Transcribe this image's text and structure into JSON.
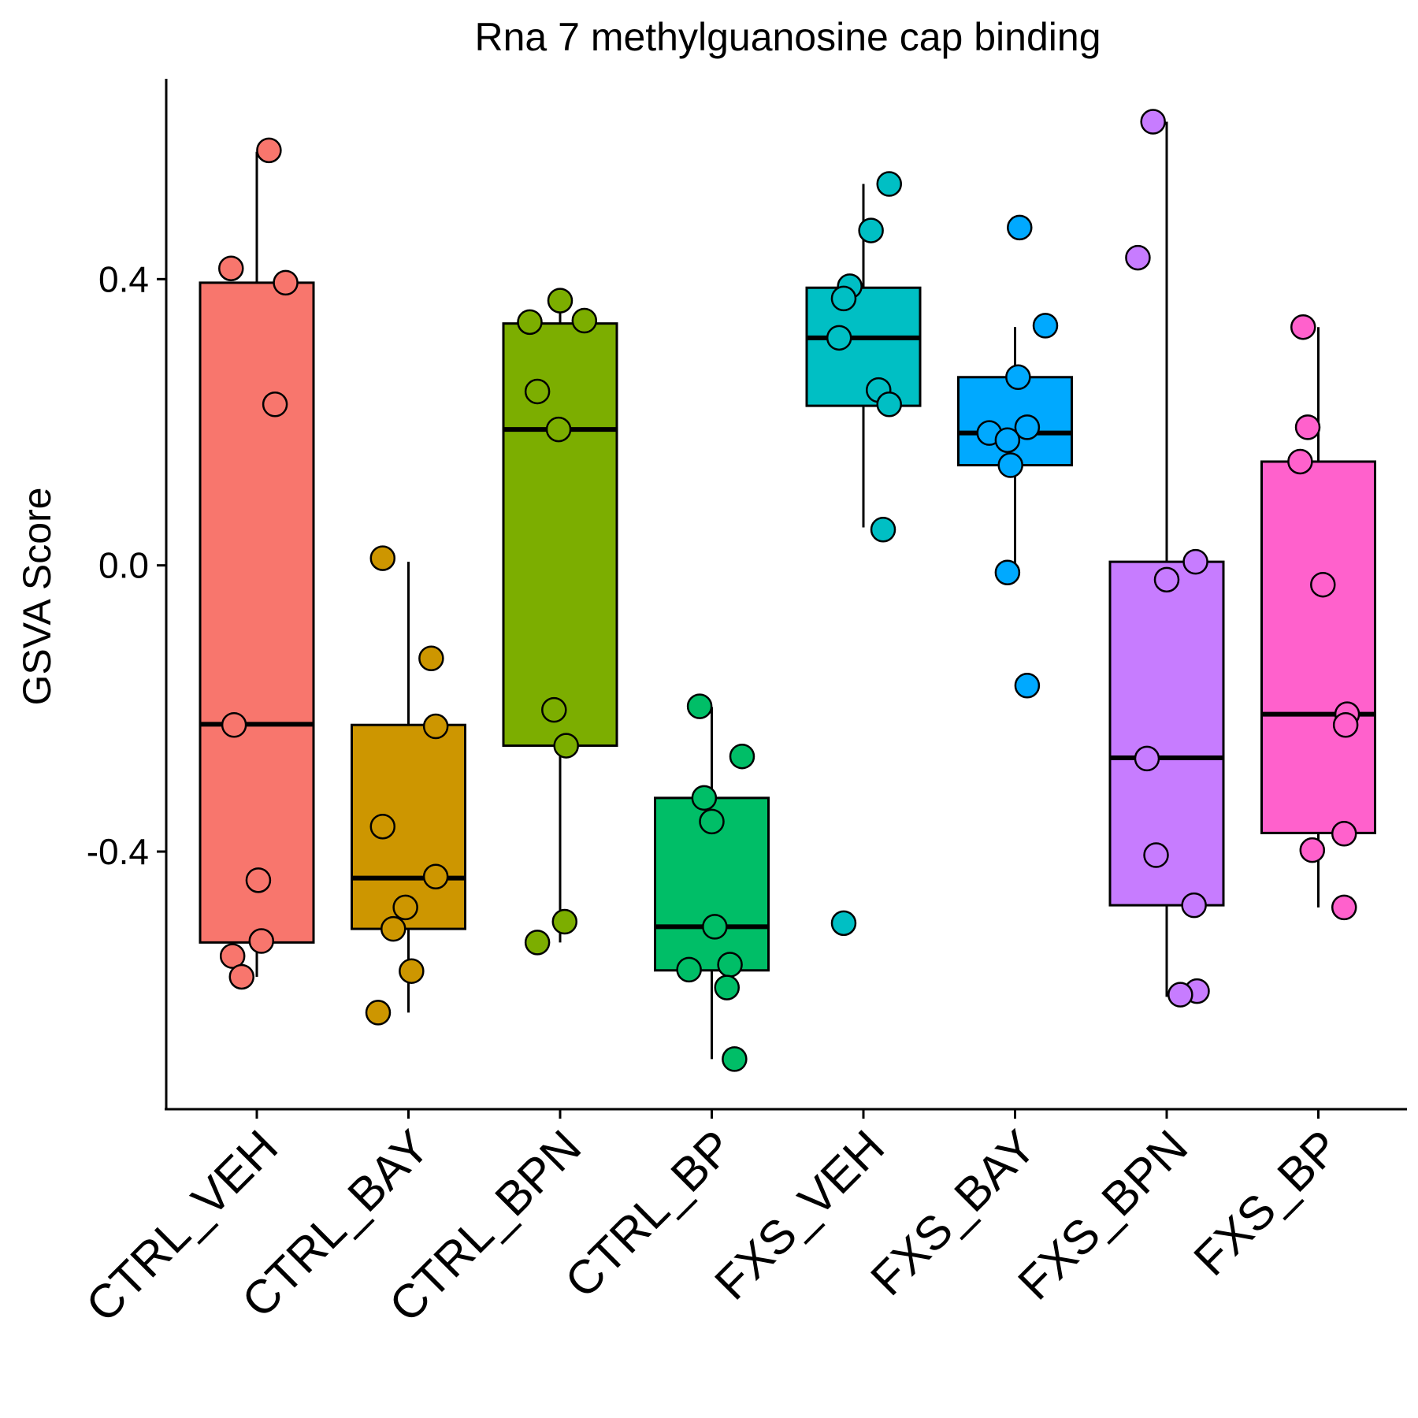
{
  "chart_data": {
    "type": "boxplot",
    "title": "Rna 7 methylguanosine cap binding",
    "xlabel": "",
    "ylabel": "GSVA Score",
    "ylim": [
      -0.76,
      0.68
    ],
    "yticks": [
      0.4,
      0.0,
      -0.4
    ],
    "ytick_labels": [
      "0.4",
      "0.0",
      "-0.4"
    ],
    "grid": false,
    "legend": "none",
    "categories": [
      "CTRL_VEH",
      "CTRL_BAY",
      "CTRL_BPN",
      "CTRL_BP",
      "FXS_VEH",
      "FXS_BAY",
      "FXS_BPN",
      "FXS_BP"
    ],
    "colors": [
      "#F8766D",
      "#CD9600",
      "#7CAE00",
      "#00BE67",
      "#00BFC4",
      "#00A9FF",
      "#C77CFF",
      "#FF61CC"
    ],
    "boxes": [
      {
        "whisker_low": -0.575,
        "q1": -0.527,
        "median": -0.222,
        "q3": 0.395,
        "whisker_high": 0.578
      },
      {
        "whisker_low": -0.625,
        "q1": -0.508,
        "median": -0.437,
        "q3": -0.223,
        "whisker_high": 0.005
      },
      {
        "whisker_low": -0.527,
        "q1": -0.252,
        "median": 0.19,
        "q3": 0.338,
        "whisker_high": 0.37
      },
      {
        "whisker_low": -0.69,
        "q1": -0.566,
        "median": -0.505,
        "q3": -0.325,
        "whisker_high": -0.198
      },
      {
        "whisker_low": 0.053,
        "q1": 0.223,
        "median": 0.318,
        "q3": 0.388,
        "whisker_high": 0.533
      },
      {
        "whisker_low": -0.008,
        "q1": 0.14,
        "median": 0.185,
        "q3": 0.263,
        "whisker_high": 0.333
      },
      {
        "whisker_low": -0.603,
        "q1": -0.475,
        "median": -0.269,
        "q3": 0.005,
        "whisker_high": 0.62
      },
      {
        "whisker_low": -0.478,
        "q1": -0.374,
        "median": -0.208,
        "q3": 0.145,
        "whisker_high": 0.333
      }
    ],
    "points": [
      [
        {
          "jitter": 0.08,
          "y": 0.58
        },
        {
          "jitter": -0.17,
          "y": 0.415
        },
        {
          "jitter": 0.19,
          "y": 0.395
        },
        {
          "jitter": 0.12,
          "y": 0.225
        },
        {
          "jitter": -0.15,
          "y": -0.223
        },
        {
          "jitter": 0.01,
          "y": -0.44
        },
        {
          "jitter": 0.03,
          "y": -0.525
        },
        {
          "jitter": -0.16,
          "y": -0.546
        },
        {
          "jitter": -0.1,
          "y": -0.575
        }
      ],
      [
        {
          "jitter": -0.17,
          "y": 0.01
        },
        {
          "jitter": 0.15,
          "y": -0.13
        },
        {
          "jitter": 0.18,
          "y": -0.225
        },
        {
          "jitter": -0.17,
          "y": -0.365
        },
        {
          "jitter": 0.18,
          "y": -0.435
        },
        {
          "jitter": -0.02,
          "y": -0.478
        },
        {
          "jitter": -0.1,
          "y": -0.508
        },
        {
          "jitter": 0.02,
          "y": -0.567
        },
        {
          "jitter": -0.2,
          "y": -0.625
        }
      ],
      [
        {
          "jitter": 0.0,
          "y": 0.37
        },
        {
          "jitter": -0.2,
          "y": 0.34
        },
        {
          "jitter": 0.16,
          "y": 0.342
        },
        {
          "jitter": -0.15,
          "y": 0.243
        },
        {
          "jitter": -0.01,
          "y": 0.19
        },
        {
          "jitter": -0.04,
          "y": -0.202
        },
        {
          "jitter": 0.04,
          "y": -0.252
        },
        {
          "jitter": 0.03,
          "y": -0.498
        },
        {
          "jitter": -0.15,
          "y": -0.527
        }
      ],
      [
        {
          "jitter": -0.08,
          "y": -0.197
        },
        {
          "jitter": 0.2,
          "y": -0.267
        },
        {
          "jitter": -0.05,
          "y": -0.325
        },
        {
          "jitter": 0.0,
          "y": -0.358
        },
        {
          "jitter": 0.02,
          "y": -0.505
        },
        {
          "jitter": -0.15,
          "y": -0.565
        },
        {
          "jitter": 0.12,
          "y": -0.558
        },
        {
          "jitter": 0.1,
          "y": -0.59
        },
        {
          "jitter": 0.15,
          "y": -0.69
        }
      ],
      [
        {
          "jitter": 0.17,
          "y": 0.533
        },
        {
          "jitter": 0.05,
          "y": 0.468
        },
        {
          "jitter": -0.09,
          "y": 0.39
        },
        {
          "jitter": -0.13,
          "y": 0.373
        },
        {
          "jitter": -0.16,
          "y": 0.318
        },
        {
          "jitter": 0.1,
          "y": 0.245
        },
        {
          "jitter": 0.17,
          "y": 0.225
        },
        {
          "jitter": 0.13,
          "y": 0.05
        },
        {
          "jitter": -0.13,
          "y": -0.5
        }
      ],
      [
        {
          "jitter": 0.03,
          "y": 0.472
        },
        {
          "jitter": 0.2,
          "y": 0.335
        },
        {
          "jitter": 0.02,
          "y": 0.263
        },
        {
          "jitter": -0.17,
          "y": 0.185
        },
        {
          "jitter": 0.08,
          "y": 0.193
        },
        {
          "jitter": -0.05,
          "y": 0.175
        },
        {
          "jitter": -0.03,
          "y": 0.14
        },
        {
          "jitter": -0.05,
          "y": -0.01
        },
        {
          "jitter": 0.08,
          "y": -0.168
        }
      ],
      [
        {
          "jitter": -0.09,
          "y": 0.62
        },
        {
          "jitter": -0.19,
          "y": 0.43
        },
        {
          "jitter": 0.19,
          "y": 0.005
        },
        {
          "jitter": 0.0,
          "y": -0.02
        },
        {
          "jitter": -0.13,
          "y": -0.27
        },
        {
          "jitter": -0.07,
          "y": -0.405
        },
        {
          "jitter": 0.18,
          "y": -0.475
        },
        {
          "jitter": 0.2,
          "y": -0.595
        },
        {
          "jitter": 0.09,
          "y": -0.6
        }
      ],
      [
        {
          "jitter": -0.1,
          "y": 0.333
        },
        {
          "jitter": -0.07,
          "y": 0.193
        },
        {
          "jitter": -0.12,
          "y": 0.145
        },
        {
          "jitter": 0.03,
          "y": -0.027
        },
        {
          "jitter": 0.19,
          "y": -0.208
        },
        {
          "jitter": 0.18,
          "y": -0.223
        },
        {
          "jitter": 0.17,
          "y": -0.375
        },
        {
          "jitter": -0.04,
          "y": -0.398
        },
        {
          "jitter": 0.17,
          "y": -0.478
        }
      ]
    ]
  }
}
